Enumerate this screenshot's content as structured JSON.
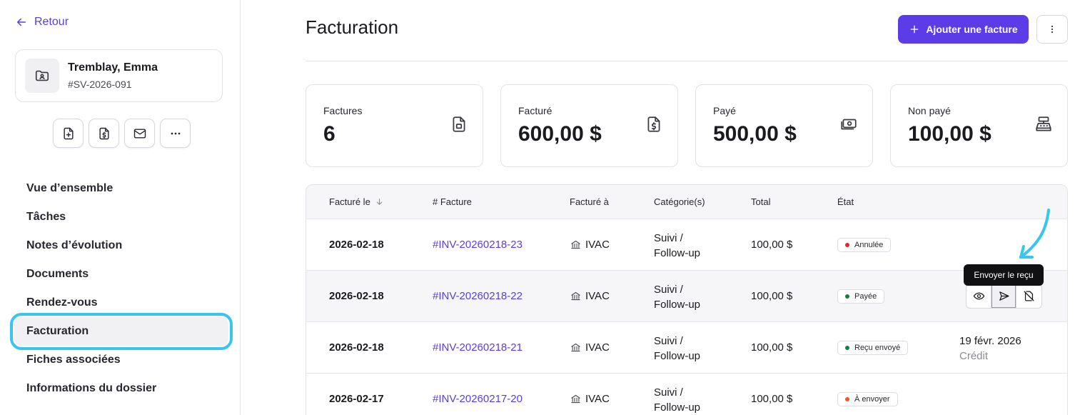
{
  "sidebar": {
    "back_label": "Retour",
    "client": {
      "name": "Tremblay, Emma",
      "id": "#SV-2026-091"
    },
    "quick_actions": [
      "file-plus-icon",
      "file-dollar-icon",
      "mail-icon",
      "more-horizontal-icon"
    ],
    "nav": [
      {
        "label": "Vue d’ensemble"
      },
      {
        "label": "Tâches"
      },
      {
        "label": "Notes d’évolution"
      },
      {
        "label": "Documents"
      },
      {
        "label": "Rendez-vous"
      },
      {
        "label": "Facturation",
        "active": true
      },
      {
        "label": "Fiches associées"
      },
      {
        "label": "Informations du dossier"
      }
    ]
  },
  "header": {
    "title": "Facturation",
    "add_button": "Ajouter une facture"
  },
  "stats": [
    {
      "label": "Factures",
      "value": "6",
      "icon": "file-icon"
    },
    {
      "label": "Facturé",
      "value": "600,00 $",
      "icon": "file-dollar-icon"
    },
    {
      "label": "Payé",
      "value": "500,00 $",
      "icon": "banknote-icon"
    },
    {
      "label": "Non payé",
      "value": "100,00 $",
      "icon": "cash-register-icon"
    }
  ],
  "table": {
    "columns": [
      "Facturé le",
      "# Facture",
      "Facturé à",
      "Catégorie(s)",
      "Total",
      "État"
    ],
    "rows": [
      {
        "date": "2026-02-18",
        "number": "#INV-20260218-23",
        "to": "IVAC",
        "cat1": "Suivi /",
        "cat2": "Follow-up",
        "total": "100,00 $",
        "status": "Annulée",
        "status_color": "#e5262a",
        "extra1": "",
        "extra2": ""
      },
      {
        "date": "2026-02-18",
        "number": "#INV-20260218-22",
        "to": "IVAC",
        "cat1": "Suivi /",
        "cat2": "Follow-up",
        "total": "100,00 $",
        "status": "Payée",
        "status_color": "#15803d",
        "extra1": "",
        "extra2": ""
      },
      {
        "date": "2026-02-18",
        "number": "#INV-20260218-21",
        "to": "IVAC",
        "cat1": "Suivi /",
        "cat2": "Follow-up",
        "total": "100,00 $",
        "status": "Reçu envoyé",
        "status_color": "#15803d",
        "extra1": "19 févr. 2026",
        "extra2": "Crédit"
      },
      {
        "date": "2026-02-17",
        "number": "#INV-20260217-20",
        "to": "IVAC",
        "cat1": "Suivi /",
        "cat2": "Follow-up",
        "total": "100,00 $",
        "status": "À envoyer",
        "status_color": "#ef5a1f",
        "extra1": "",
        "extra2": ""
      }
    ],
    "row_actions": [
      "eye-icon",
      "send-icon",
      "file-off-icon"
    ]
  },
  "tooltip": "Envoyer le reçu",
  "colors": {
    "accent": "#5b3ce6",
    "highlight": "#38c6ee"
  }
}
